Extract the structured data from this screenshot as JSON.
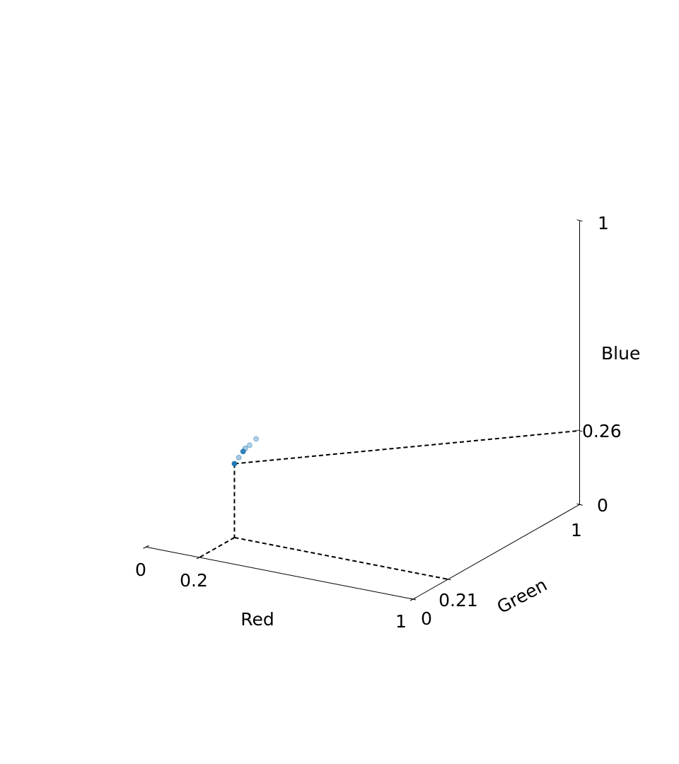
{
  "chart_data": {
    "type": "scatter",
    "axes": {
      "x": {
        "label": "Red",
        "range": [
          0,
          1
        ],
        "ticks": [
          "0",
          "0.2",
          "1"
        ]
      },
      "y": {
        "label": "Green",
        "range": [
          0,
          1
        ],
        "ticks": [
          "0",
          "0.21",
          "1"
        ]
      },
      "z": {
        "label": "Blue",
        "range": [
          0,
          1
        ],
        "ticks": [
          "0",
          "0.26",
          "1"
        ]
      }
    },
    "highlight": {
      "x": 0.2,
      "y": 0.21,
      "z": 0.26
    },
    "points": [
      {
        "x": 0.2,
        "y": 0.21,
        "z": 0.26,
        "opacity": 1.0
      },
      {
        "x": 0.21,
        "y": 0.22,
        "z": 0.28,
        "opacity": 0.4
      },
      {
        "x": 0.22,
        "y": 0.23,
        "z": 0.3,
        "opacity": 0.9
      },
      {
        "x": 0.225,
        "y": 0.235,
        "z": 0.31,
        "opacity": 0.4
      },
      {
        "x": 0.235,
        "y": 0.245,
        "z": 0.32,
        "opacity": 0.35
      },
      {
        "x": 0.25,
        "y": 0.26,
        "z": 0.34,
        "opacity": 0.35
      }
    ],
    "point_color": "#1f77b4",
    "grid": false
  }
}
